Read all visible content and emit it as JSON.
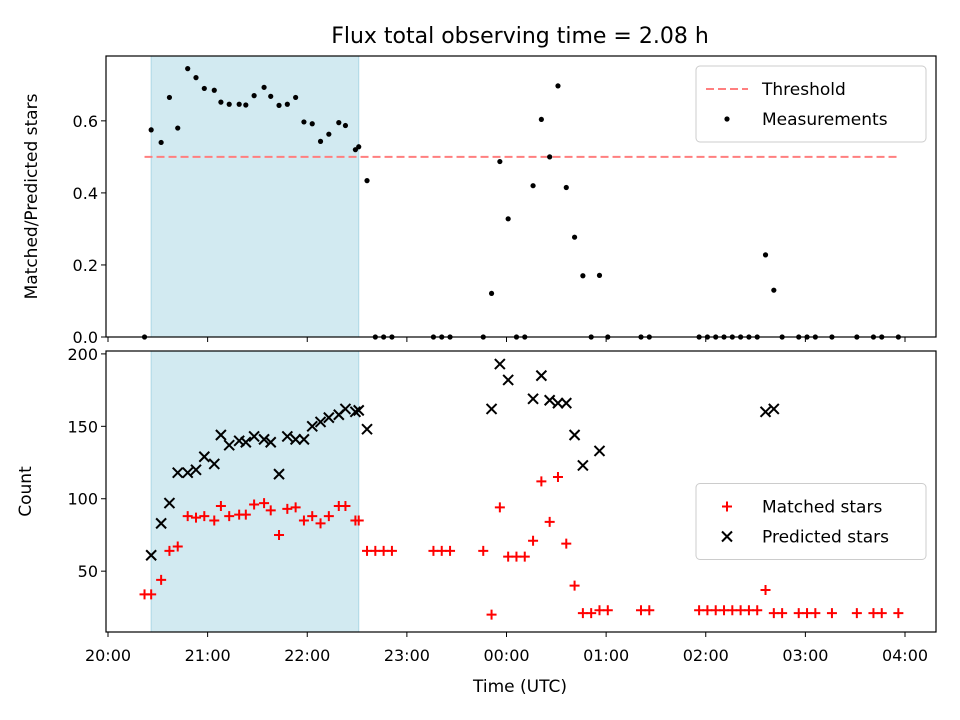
{
  "chart_data": {
    "title": "Flux total observing time = 2.08 h",
    "xlabel": "Time (UTC)",
    "x_range": [
      "20:00",
      "04:00"
    ],
    "x_ticks": [
      "20:00",
      "21:00",
      "22:00",
      "23:00",
      "00:00",
      "01:00",
      "02:00",
      "03:00",
      "04:00"
    ],
    "highlight_span": {
      "start": "20:26",
      "end": "22:31",
      "color": "#add8e6"
    },
    "panels": [
      {
        "type": "scatter",
        "ylabel": "Matched/Predicted stars",
        "ylim": [
          0.0,
          0.78
        ],
        "y_ticks": [
          "0.0",
          "0.2",
          "0.4",
          "0.6"
        ],
        "legend_position": "top-right",
        "threshold": {
          "name": "Threshold",
          "value": 0.5,
          "x_start": "20:22",
          "x_end": "03:56",
          "color": "#ff7f7f"
        },
        "series": [
          {
            "name": "Measurements",
            "color": "#000000",
            "marker": "dot",
            "points": [
              [
                "20:22",
                0.0
              ],
              [
                "20:26",
                0.575
              ],
              [
                "20:32",
                0.54
              ],
              [
                "20:37",
                0.665
              ],
              [
                "20:42",
                0.58
              ],
              [
                "20:48",
                0.745
              ],
              [
                "20:53",
                0.72
              ],
              [
                "20:58",
                0.69
              ],
              [
                "21:04",
                0.685
              ],
              [
                "21:08",
                0.652
              ],
              [
                "21:13",
                0.646
              ],
              [
                "21:19",
                0.646
              ],
              [
                "21:23",
                0.644
              ],
              [
                "21:28",
                0.67
              ],
              [
                "21:34",
                0.693
              ],
              [
                "21:38",
                0.668
              ],
              [
                "21:43",
                0.643
              ],
              [
                "21:48",
                0.646
              ],
              [
                "21:53",
                0.665
              ],
              [
                "21:58",
                0.597
              ],
              [
                "22:03",
                0.592
              ],
              [
                "22:08",
                0.543
              ],
              [
                "22:13",
                0.563
              ],
              [
                "22:19",
                0.595
              ],
              [
                "22:23",
                0.587
              ],
              [
                "22:29",
                0.52
              ],
              [
                "22:31",
                0.528
              ],
              [
                "22:36",
                0.434
              ],
              [
                "22:41",
                0.0
              ],
              [
                "22:46",
                0.0
              ],
              [
                "22:51",
                0.0
              ],
              [
                "23:16",
                0.0
              ],
              [
                "23:21",
                0.0
              ],
              [
                "23:26",
                0.0
              ],
              [
                "23:46",
                0.0
              ],
              [
                "23:51",
                0.121
              ],
              [
                "23:56",
                0.487
              ],
              [
                "00:01",
                0.328
              ],
              [
                "00:06",
                0.0
              ],
              [
                "00:11",
                0.0
              ],
              [
                "00:16",
                0.42
              ],
              [
                "00:21",
                0.604
              ],
              [
                "00:26",
                0.5
              ],
              [
                "00:31",
                0.697
              ],
              [
                "00:36",
                0.415
              ],
              [
                "00:41",
                0.277
              ],
              [
                "00:46",
                0.17
              ],
              [
                "00:51",
                0.0
              ],
              [
                "00:56",
                0.171
              ],
              [
                "01:01",
                0.0
              ],
              [
                "01:21",
                0.0
              ],
              [
                "01:26",
                0.0
              ],
              [
                "01:56",
                0.0
              ],
              [
                "02:01",
                0.0
              ],
              [
                "02:06",
                0.0
              ],
              [
                "02:11",
                0.0
              ],
              [
                "02:16",
                0.0
              ],
              [
                "02:21",
                0.0
              ],
              [
                "02:26",
                0.0
              ],
              [
                "02:31",
                0.0
              ],
              [
                "02:36",
                0.228
              ],
              [
                "02:41",
                0.13
              ],
              [
                "02:46",
                0.0
              ],
              [
                "02:56",
                0.0
              ],
              [
                "03:01",
                0.0
              ],
              [
                "03:06",
                0.0
              ],
              [
                "03:16",
                0.0
              ],
              [
                "03:31",
                0.0
              ],
              [
                "03:41",
                0.0
              ],
              [
                "03:46",
                0.0
              ],
              [
                "03:56",
                0.0
              ]
            ]
          }
        ]
      },
      {
        "type": "scatter",
        "ylabel": "Count",
        "ylim": [
          8,
          202
        ],
        "y_ticks": [
          "50",
          "100",
          "150",
          "200"
        ],
        "legend_position": "center-right",
        "series": [
          {
            "name": "Matched stars",
            "color": "#ff0000",
            "marker": "plus",
            "points": [
              [
                "20:22",
                34
              ],
              [
                "20:26",
                34
              ],
              [
                "20:32",
                44
              ],
              [
                "20:37",
                64
              ],
              [
                "20:42",
                67
              ],
              [
                "20:48",
                88
              ],
              [
                "20:53",
                87
              ],
              [
                "20:58",
                88
              ],
              [
                "21:04",
                85
              ],
              [
                "21:08",
                95
              ],
              [
                "21:13",
                88
              ],
              [
                "21:19",
                89
              ],
              [
                "21:23",
                89
              ],
              [
                "21:28",
                96
              ],
              [
                "21:34",
                97
              ],
              [
                "21:38",
                92
              ],
              [
                "21:43",
                75
              ],
              [
                "21:48",
                93
              ],
              [
                "21:53",
                94
              ],
              [
                "21:58",
                85
              ],
              [
                "22:03",
                88
              ],
              [
                "22:08",
                83
              ],
              [
                "22:13",
                88
              ],
              [
                "22:19",
                95
              ],
              [
                "22:23",
                95
              ],
              [
                "22:29",
                85
              ],
              [
                "22:31",
                85
              ],
              [
                "22:36",
                64
              ],
              [
                "22:41",
                64
              ],
              [
                "22:46",
                64
              ],
              [
                "22:51",
                64
              ],
              [
                "23:16",
                64
              ],
              [
                "23:21",
                64
              ],
              [
                "23:26",
                64
              ],
              [
                "23:46",
                64
              ],
              [
                "23:51",
                20
              ],
              [
                "23:56",
                94
              ],
              [
                "00:01",
                60
              ],
              [
                "00:06",
                60
              ],
              [
                "00:11",
                60
              ],
              [
                "00:16",
                71
              ],
              [
                "00:21",
                112
              ],
              [
                "00:26",
                84
              ],
              [
                "00:31",
                115
              ],
              [
                "00:36",
                69
              ],
              [
                "00:41",
                40
              ],
              [
                "00:46",
                21
              ],
              [
                "00:51",
                21
              ],
              [
                "00:56",
                23
              ],
              [
                "01:01",
                23
              ],
              [
                "01:21",
                23
              ],
              [
                "01:26",
                23
              ],
              [
                "01:56",
                23
              ],
              [
                "02:01",
                23
              ],
              [
                "02:06",
                23
              ],
              [
                "02:11",
                23
              ],
              [
                "02:16",
                23
              ],
              [
                "02:21",
                23
              ],
              [
                "02:26",
                23
              ],
              [
                "02:31",
                23
              ],
              [
                "02:36",
                37
              ],
              [
                "02:41",
                21
              ],
              [
                "02:46",
                21
              ],
              [
                "02:56",
                21
              ],
              [
                "03:01",
                21
              ],
              [
                "03:06",
                21
              ],
              [
                "03:16",
                21
              ],
              [
                "03:31",
                21
              ],
              [
                "03:41",
                21
              ],
              [
                "03:46",
                21
              ],
              [
                "03:56",
                21
              ]
            ]
          },
          {
            "name": "Predicted stars",
            "color": "#000000",
            "marker": "x",
            "points": [
              [
                "20:26",
                61
              ],
              [
                "20:32",
                83
              ],
              [
                "20:37",
                97
              ],
              [
                "20:42",
                118
              ],
              [
                "20:48",
                118
              ],
              [
                "20:53",
                120
              ],
              [
                "20:58",
                129
              ],
              [
                "21:04",
                124
              ],
              [
                "21:08",
                144
              ],
              [
                "21:13",
                137
              ],
              [
                "21:19",
                140
              ],
              [
                "21:23",
                139
              ],
              [
                "21:28",
                143
              ],
              [
                "21:34",
                141
              ],
              [
                "21:38",
                139
              ],
              [
                "21:43",
                117
              ],
              [
                "21:48",
                143
              ],
              [
                "21:53",
                141
              ],
              [
                "21:58",
                141
              ],
              [
                "22:03",
                150
              ],
              [
                "22:08",
                153
              ],
              [
                "22:13",
                156
              ],
              [
                "22:19",
                158
              ],
              [
                "22:23",
                162
              ],
              [
                "22:29",
                160
              ],
              [
                "22:31",
                161
              ],
              [
                "22:36",
                148
              ],
              [
                "23:51",
                162
              ],
              [
                "23:56",
                193
              ],
              [
                "00:01",
                182
              ],
              [
                "00:16",
                169
              ],
              [
                "00:21",
                185
              ],
              [
                "00:26",
                168
              ],
              [
                "00:31",
                166
              ],
              [
                "00:36",
                166
              ],
              [
                "00:41",
                144
              ],
              [
                "00:46",
                123
              ],
              [
                "00:56",
                133
              ],
              [
                "02:36",
                160
              ],
              [
                "02:41",
                162
              ]
            ]
          }
        ]
      }
    ]
  }
}
